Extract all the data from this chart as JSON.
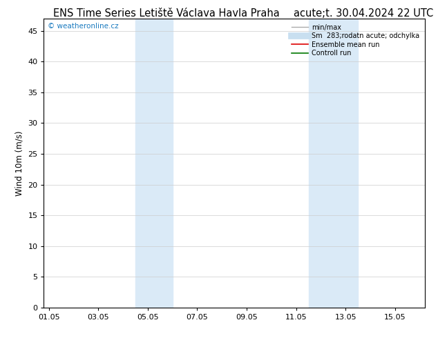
{
  "title_left": "ENS Time Series Letiště Václava Havla Praha",
  "title_right": "acute;t. 30.04.2024 22 UTC",
  "ylabel": "Wind 10m (m/s)",
  "xlabel_ticks": [
    "01.05",
    "03.05",
    "05.05",
    "07.05",
    "09.05",
    "11.05",
    "13.05",
    "15.05"
  ],
  "xlabel_vals": [
    0,
    2,
    4,
    6,
    8,
    10,
    12,
    14
  ],
  "ylim": [
    0,
    47
  ],
  "yticks": [
    0,
    5,
    10,
    15,
    20,
    25,
    30,
    35,
    40,
    45
  ],
  "xlim": [
    -0.2,
    15.2
  ],
  "bg_color": "#ffffff",
  "plot_bg_color": "#ffffff",
  "shaded_bands": [
    {
      "xmin": 3.5,
      "xmax": 5.0,
      "color": "#daeaf7"
    },
    {
      "xmin": 10.5,
      "xmax": 12.5,
      "color": "#daeaf7"
    }
  ],
  "watermark_text": "© weatheronline.cz",
  "watermark_color": "#1a7abf",
  "legend_entries": [
    {
      "label": "min/max",
      "color": "#aaaaaa",
      "lw": 1.0,
      "type": "line"
    },
    {
      "label": "Sm  283;rodatn acute; odchylka",
      "color": "#c8dff0",
      "lw": 7,
      "type": "line"
    },
    {
      "label": "Ensemble mean run",
      "color": "#dd0000",
      "lw": 1.2,
      "type": "line"
    },
    {
      "label": "Controll run",
      "color": "#007700",
      "lw": 1.2,
      "type": "line"
    }
  ],
  "title_fontsize": 10.5,
  "tick_fontsize": 8,
  "ylabel_fontsize": 8.5,
  "grid_color": "#cccccc"
}
